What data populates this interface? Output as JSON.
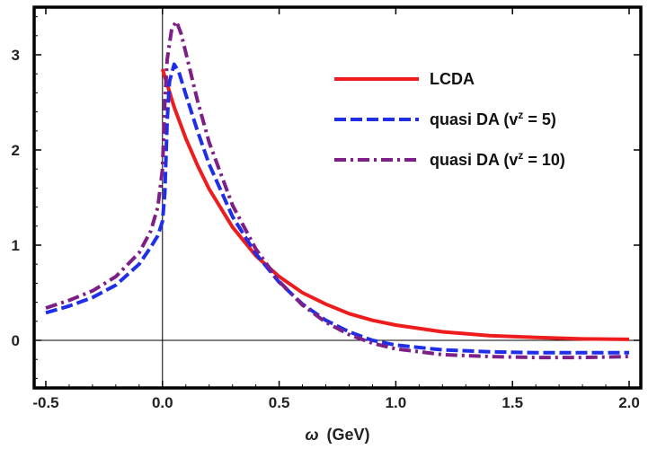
{
  "chart_data": {
    "type": "line",
    "title": "",
    "xlabel_symbol": "ω",
    "xlabel_unit": "(GeV)",
    "ylabel": "",
    "xlim": [
      -0.55,
      2.05
    ],
    "ylim": [
      -0.5,
      3.5
    ],
    "x_ticks": [
      {
        "value": -0.5,
        "label": "-0.5"
      },
      {
        "value": 0.0,
        "label": "0.0"
      },
      {
        "value": 0.5,
        "label": "0.5"
      },
      {
        "value": 1.0,
        "label": "1.0"
      },
      {
        "value": 1.5,
        "label": "1.5"
      },
      {
        "value": 2.0,
        "label": "2.0"
      }
    ],
    "y_ticks": [
      {
        "value": 0,
        "label": "0"
      },
      {
        "value": 1,
        "label": "1"
      },
      {
        "value": 2,
        "label": "2"
      },
      {
        "value": 3,
        "label": "3"
      }
    ],
    "grid": false,
    "legend_position": "top-right",
    "series": [
      {
        "name": "LCDA",
        "legend_main": "LCDA",
        "legend_sup": "",
        "legend_tail": "",
        "color": "#ee1c1c",
        "dash": "solid",
        "x": [
          0.0,
          0.05,
          0.1,
          0.15,
          0.2,
          0.3,
          0.4,
          0.5,
          0.6,
          0.7,
          0.8,
          0.9,
          1.0,
          1.2,
          1.4,
          1.6,
          1.8,
          2.0
        ],
        "y": [
          2.85,
          2.45,
          2.12,
          1.84,
          1.59,
          1.19,
          0.89,
          0.67,
          0.5,
          0.38,
          0.28,
          0.21,
          0.16,
          0.09,
          0.05,
          0.03,
          0.015,
          0.01
        ]
      },
      {
        "name": "quasi DA (v^z = 5)",
        "legend_main": "quasi DA (v",
        "legend_sup": "z",
        "legend_tail": " = 5)",
        "color": "#1f2ee8",
        "dash": "dashed",
        "x": [
          -0.5,
          -0.4,
          -0.3,
          -0.2,
          -0.1,
          -0.05,
          -0.02,
          0.0,
          0.01,
          0.02,
          0.03,
          0.05,
          0.07,
          0.1,
          0.15,
          0.2,
          0.3,
          0.4,
          0.5,
          0.6,
          0.7,
          0.8,
          0.9,
          1.0,
          1.2,
          1.4,
          1.6,
          1.8,
          2.0
        ],
        "y": [
          0.29,
          0.36,
          0.45,
          0.58,
          0.8,
          0.98,
          1.1,
          1.25,
          1.55,
          2.3,
          2.72,
          2.9,
          2.82,
          2.58,
          2.2,
          1.85,
          1.3,
          0.91,
          0.61,
          0.38,
          0.21,
          0.09,
          0.0,
          -0.05,
          -0.1,
          -0.12,
          -0.13,
          -0.13,
          -0.13
        ]
      },
      {
        "name": "quasi DA (v^z = 10)",
        "legend_main": "quasi DA (v",
        "legend_sup": "z",
        "legend_tail": " = 10)",
        "color": "#7d1f86",
        "dash": "dashdot",
        "x": [
          -0.5,
          -0.4,
          -0.3,
          -0.2,
          -0.1,
          -0.05,
          -0.02,
          0.0,
          0.01,
          0.02,
          0.04,
          0.06,
          0.08,
          0.1,
          0.15,
          0.2,
          0.3,
          0.4,
          0.5,
          0.6,
          0.7,
          0.8,
          0.9,
          1.0,
          1.2,
          1.4,
          1.6,
          1.8,
          2.0
        ],
        "y": [
          0.34,
          0.42,
          0.52,
          0.67,
          0.92,
          1.15,
          1.4,
          1.8,
          2.5,
          2.95,
          3.28,
          3.35,
          3.22,
          3.02,
          2.52,
          2.08,
          1.42,
          0.96,
          0.62,
          0.37,
          0.19,
          0.06,
          -0.03,
          -0.09,
          -0.15,
          -0.17,
          -0.18,
          -0.18,
          -0.17
        ]
      }
    ]
  }
}
